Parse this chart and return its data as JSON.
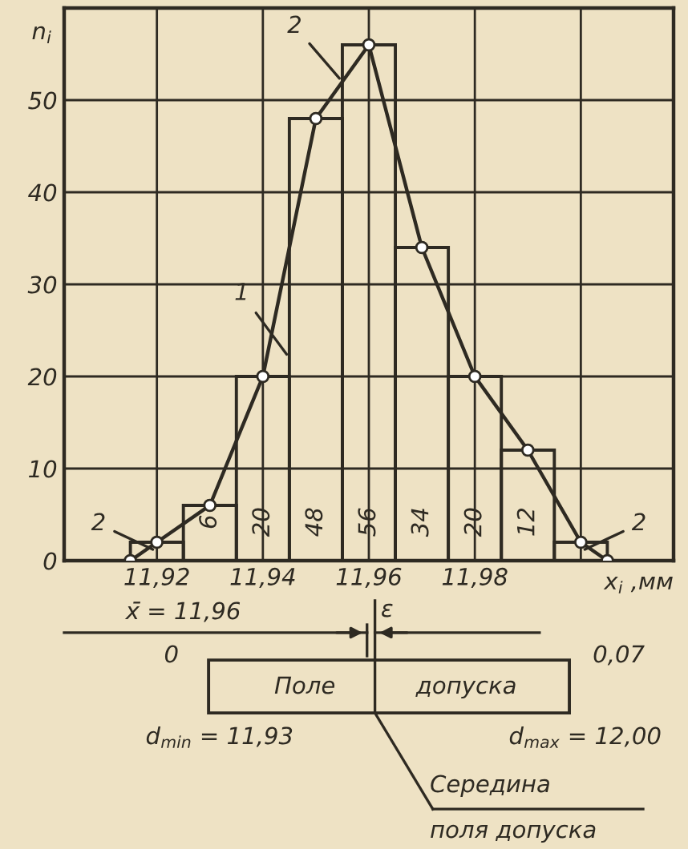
{
  "chart_data": {
    "type": "histogram",
    "xlabel": "x$_{i}$ ,мм",
    "ylabel": "n$_{i}$",
    "series": [
      {
        "type": "histogram",
        "color": "#2e2a22",
        "bins": [
          11.915,
          11.925,
          11.935,
          11.945,
          11.955,
          11.965,
          11.975,
          11.985,
          11.995,
          12.005
        ],
        "values": [
          2,
          6,
          20,
          48,
          56,
          34,
          20,
          12,
          2
        ],
        "value_labels": [
          "2",
          "6",
          "20",
          "48",
          "56",
          "34",
          "20",
          "12",
          "2"
        ]
      },
      {
        "type": "line",
        "color": "#2e2a22",
        "marker": "circle",
        "x": [
          11.915,
          11.92,
          11.93,
          11.94,
          11.95,
          11.96,
          11.97,
          11.98,
          11.99,
          12.0,
          12.005
        ],
        "values": [
          0,
          2,
          6,
          20,
          48,
          56,
          34,
          20,
          12,
          2,
          0
        ]
      }
    ],
    "xlim": [
      11.9025,
      12.0175
    ],
    "ylim": [
      0,
      60
    ],
    "xticks": [
      {
        "value": 11.92,
        "label": "11,92"
      },
      {
        "value": 11.94,
        "label": "11,94"
      },
      {
        "value": 11.96,
        "label": "11,96"
      },
      {
        "value": 11.98,
        "label": "11,98"
      },
      {
        "value": 12.0,
        "label": null
      }
    ],
    "yticks": [
      0,
      10,
      20,
      30,
      40,
      50
    ],
    "grid": true,
    "line_style": "solid",
    "annotations": [
      {
        "text": "1",
        "x": 11.945,
        "y": 22
      },
      {
        "text": "2",
        "x": 11.955,
        "y": 52
      },
      "x̄ = 11,96",
      "ε",
      "0",
      "0,07",
      "Поле",
      "допуска",
      "d$_{min}$ = 11,93",
      "d$_{max}$ = 12,00",
      "Середина",
      "поля допуска"
    ]
  }
}
